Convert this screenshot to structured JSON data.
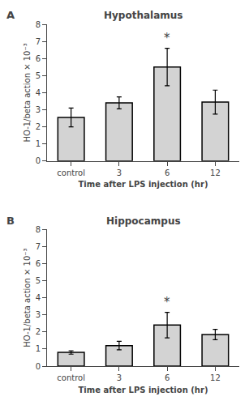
{
  "chart_data": [
    {
      "type": "bar",
      "title": "Hypothalamus",
      "categories": [
        "control",
        "3",
        "6",
        "12"
      ],
      "values": [
        2.55,
        3.4,
        5.5,
        3.45
      ],
      "errors": [
        0.55,
        0.35,
        1.1,
        0.7
      ],
      "color": "#d3d3d3",
      "ylim": [
        0,
        8
      ],
      "yticks": [
        0,
        1,
        2,
        3,
        4,
        5,
        6,
        7,
        8
      ],
      "ylabel": "HO-1/beta action × 10⁻³",
      "xlabel": "Time after LPS injection (hr)",
      "grid": false,
      "annotations": [
        {
          "text": "A"
        },
        {
          "text": "*",
          "category": "6"
        }
      ]
    },
    {
      "type": "bar",
      "title": "Hippocampus",
      "categories": [
        "control",
        "3",
        "6",
        "12"
      ],
      "values": [
        0.8,
        1.2,
        2.4,
        1.85
      ],
      "errors": [
        0.1,
        0.25,
        0.75,
        0.3
      ],
      "color": "#d3d3d3",
      "ylim": [
        0,
        8
      ],
      "yticks": [
        0,
        1,
        2,
        3,
        4,
        5,
        6,
        7,
        8
      ],
      "ylabel": "HO-1/beta action × 10⁻³",
      "xlabel": "Time after LPS injection (hr)",
      "grid": false,
      "annotations": [
        {
          "text": "B"
        },
        {
          "text": "*",
          "category": "6"
        }
      ]
    }
  ]
}
